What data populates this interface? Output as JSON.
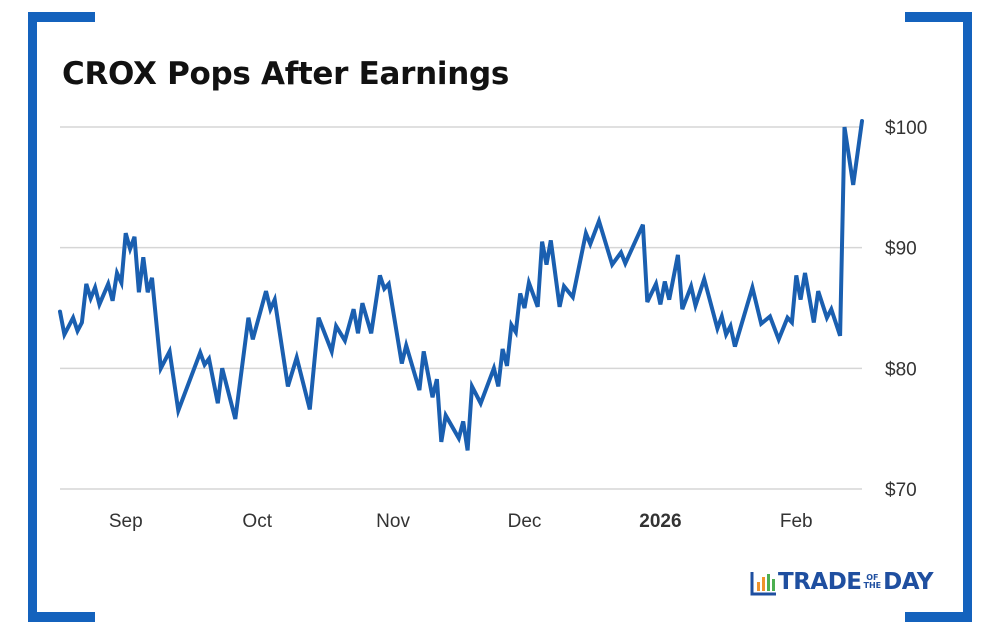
{
  "chart_data": {
    "type": "line",
    "title": "CROX Pops After Earnings",
    "xlabel": "",
    "ylabel": "",
    "xlim": [
      "2025-08-17",
      "2026-02-16"
    ],
    "ylim": [
      70,
      100.5
    ],
    "grid": "horizontal",
    "y_axis_side": "right",
    "line_color": "#1a5fb0",
    "frame_color": "#1462bd",
    "y_ticks": [
      {
        "value": 100,
        "label": "$100"
      },
      {
        "value": 90,
        "label": "$90"
      },
      {
        "value": 80,
        "label": "$80"
      },
      {
        "value": 70,
        "label": "$70"
      }
    ],
    "x_ticks": [
      {
        "date": "2025-09-01",
        "label": "Sep",
        "bold": false
      },
      {
        "date": "2025-10-01",
        "label": "Oct",
        "bold": false
      },
      {
        "date": "2025-11-01",
        "label": "Nov",
        "bold": false
      },
      {
        "date": "2025-12-01",
        "label": "Dec",
        "bold": false
      },
      {
        "date": "2026-01-01",
        "label": "2026",
        "bold": true
      },
      {
        "date": "2026-02-01",
        "label": "Feb",
        "bold": false
      }
    ],
    "series": [
      {
        "points": [
          [
            "2025-08-17",
            84.7
          ],
          [
            "2025-08-18",
            82.8
          ],
          [
            "2025-08-20",
            84.2
          ],
          [
            "2025-08-21",
            83.1
          ],
          [
            "2025-08-22",
            83.8
          ],
          [
            "2025-08-23",
            87.0
          ],
          [
            "2025-08-24",
            85.8
          ],
          [
            "2025-08-25",
            86.7
          ],
          [
            "2025-08-26",
            85.3
          ],
          [
            "2025-08-28",
            87.0
          ],
          [
            "2025-08-29",
            85.6
          ],
          [
            "2025-08-30",
            87.9
          ],
          [
            "2025-08-31",
            87.1
          ],
          [
            "2025-09-01",
            91.2
          ],
          [
            "2025-09-02",
            89.9
          ],
          [
            "2025-09-03",
            90.9
          ],
          [
            "2025-09-04",
            86.3
          ],
          [
            "2025-09-05",
            89.2
          ],
          [
            "2025-09-06",
            86.3
          ],
          [
            "2025-09-07",
            87.5
          ],
          [
            "2025-09-09",
            80.0
          ],
          [
            "2025-09-11",
            81.4
          ],
          [
            "2025-09-13",
            76.5
          ],
          [
            "2025-09-18",
            81.3
          ],
          [
            "2025-09-19",
            80.3
          ],
          [
            "2025-09-20",
            80.8
          ],
          [
            "2025-09-22",
            77.1
          ],
          [
            "2025-09-23",
            80.0
          ],
          [
            "2025-09-26",
            75.8
          ],
          [
            "2025-09-29",
            84.2
          ],
          [
            "2025-09-30",
            82.4
          ],
          [
            "2025-10-03",
            86.4
          ],
          [
            "2025-10-04",
            84.9
          ],
          [
            "2025-10-05",
            85.7
          ],
          [
            "2025-10-08",
            78.5
          ],
          [
            "2025-10-10",
            80.9
          ],
          [
            "2025-10-13",
            76.6
          ],
          [
            "2025-10-15",
            84.2
          ],
          [
            "2025-10-18",
            81.4
          ],
          [
            "2025-10-19",
            83.5
          ],
          [
            "2025-10-21",
            82.3
          ],
          [
            "2025-10-23",
            84.9
          ],
          [
            "2025-10-24",
            82.9
          ],
          [
            "2025-10-25",
            85.4
          ],
          [
            "2025-10-27",
            82.9
          ],
          [
            "2025-10-29",
            87.7
          ],
          [
            "2025-10-30",
            86.6
          ],
          [
            "2025-10-31",
            87.0
          ],
          [
            "2025-11-03",
            80.4
          ],
          [
            "2025-11-04",
            81.9
          ],
          [
            "2025-11-07",
            78.2
          ],
          [
            "2025-11-08",
            81.4
          ],
          [
            "2025-11-10",
            77.6
          ],
          [
            "2025-11-11",
            79.1
          ],
          [
            "2025-11-12",
            73.9
          ],
          [
            "2025-11-13",
            76.1
          ],
          [
            "2025-11-16",
            74.2
          ],
          [
            "2025-11-17",
            75.6
          ],
          [
            "2025-11-18",
            73.2
          ],
          [
            "2025-11-19",
            78.5
          ],
          [
            "2025-11-21",
            77.1
          ],
          [
            "2025-11-24",
            80.0
          ],
          [
            "2025-11-25",
            78.5
          ],
          [
            "2025-11-26",
            81.6
          ],
          [
            "2025-11-27",
            80.2
          ],
          [
            "2025-11-28",
            83.6
          ],
          [
            "2025-11-29",
            83.0
          ],
          [
            "2025-11-30",
            86.2
          ],
          [
            "2025-12-01",
            85.0
          ],
          [
            "2025-12-02",
            87.1
          ],
          [
            "2025-12-04",
            85.1
          ],
          [
            "2025-12-05",
            90.5
          ],
          [
            "2025-12-06",
            88.6
          ],
          [
            "2025-12-07",
            90.6
          ],
          [
            "2025-12-09",
            85.1
          ],
          [
            "2025-12-10",
            86.8
          ],
          [
            "2025-12-12",
            85.9
          ],
          [
            "2025-12-15",
            91.2
          ],
          [
            "2025-12-16",
            90.3
          ],
          [
            "2025-12-18",
            92.2
          ],
          [
            "2025-12-21",
            88.6
          ],
          [
            "2025-12-23",
            89.6
          ],
          [
            "2025-12-24",
            88.7
          ],
          [
            "2025-12-28",
            91.9
          ],
          [
            "2025-12-29",
            85.5
          ],
          [
            "2025-12-31",
            87.0
          ],
          [
            "2026-01-01",
            85.3
          ],
          [
            "2026-01-02",
            87.2
          ],
          [
            "2026-01-03",
            85.7
          ],
          [
            "2026-01-05",
            89.4
          ],
          [
            "2026-01-06",
            84.9
          ],
          [
            "2026-01-08",
            86.8
          ],
          [
            "2026-01-09",
            85.2
          ],
          [
            "2026-01-11",
            87.4
          ],
          [
            "2026-01-14",
            83.3
          ],
          [
            "2026-01-15",
            84.3
          ],
          [
            "2026-01-16",
            82.8
          ],
          [
            "2026-01-17",
            83.5
          ],
          [
            "2026-01-18",
            81.8
          ],
          [
            "2026-01-22",
            86.7
          ],
          [
            "2026-01-24",
            83.7
          ],
          [
            "2026-01-26",
            84.3
          ],
          [
            "2026-01-28",
            82.4
          ],
          [
            "2026-01-30",
            84.2
          ],
          [
            "2026-01-31",
            83.8
          ],
          [
            "2026-02-01",
            87.7
          ],
          [
            "2026-02-02",
            85.7
          ],
          [
            "2026-02-03",
            87.9
          ],
          [
            "2026-02-05",
            83.8
          ],
          [
            "2026-02-06",
            86.4
          ],
          [
            "2026-02-08",
            84.2
          ],
          [
            "2026-02-09",
            84.9
          ],
          [
            "2026-02-11",
            82.7
          ],
          [
            "2026-02-12",
            100.0
          ],
          [
            "2026-02-14",
            95.2
          ],
          [
            "2026-02-16",
            100.5
          ]
        ]
      }
    ]
  },
  "logo": {
    "word1": "TRADE",
    "small1": "OF",
    "small2": "THE",
    "word2": "DAY",
    "colors": [
      "#f0932b",
      "#4caf50",
      "#1f4fa0"
    ]
  }
}
